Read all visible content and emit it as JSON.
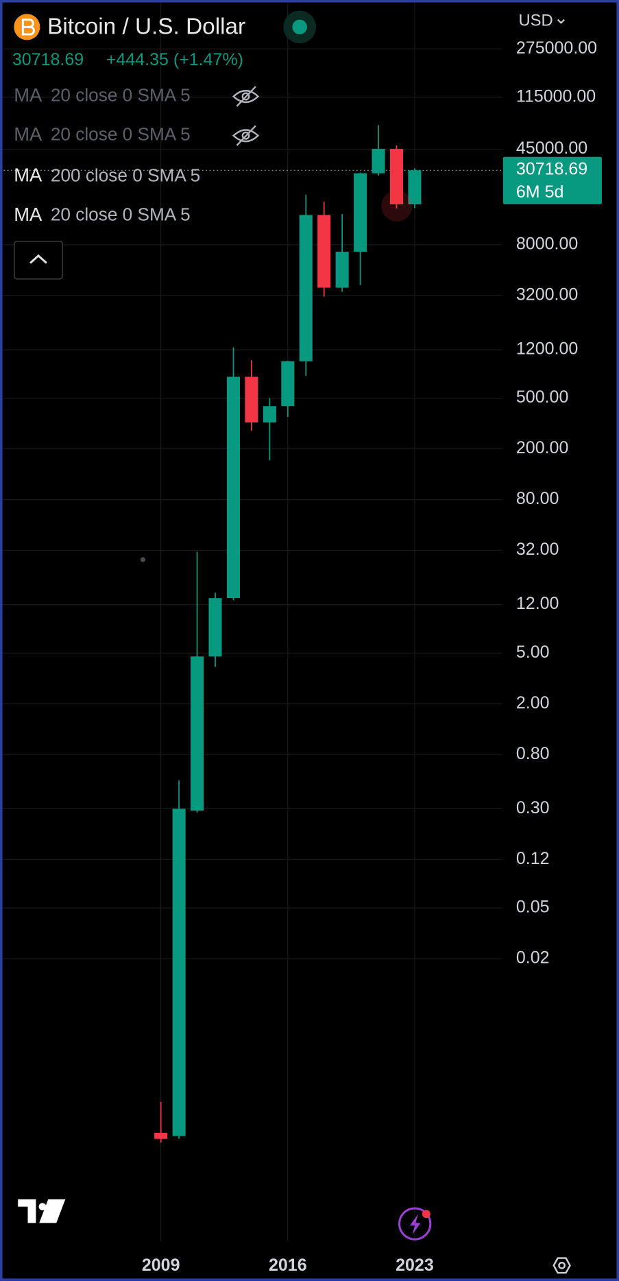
{
  "chart_data": {
    "type": "candlestick",
    "title": "Bitcoin / U.S. Dollar",
    "last_price": 30718.69,
    "change_label": "+444.35 (+1.47%)",
    "currency": "USD",
    "countdown": "6M 5d",
    "indicators": [
      {
        "name": "MA",
        "params": "20 close 0 SMA 5",
        "hidden": true
      },
      {
        "name": "MA",
        "params": "20 close 0 SMA 5",
        "hidden": true
      },
      {
        "name": "MA",
        "params": "200 close 0 SMA 5",
        "hidden": false
      },
      {
        "name": "MA",
        "params": "20 close 0 SMA 5",
        "hidden": false
      }
    ],
    "categories": [
      "2009",
      null,
      null,
      null,
      null,
      null,
      null,
      "2016",
      null,
      null,
      null,
      null,
      null,
      null,
      "2023"
    ],
    "open": [
      0.00086,
      0.00081,
      0.29,
      4.7,
      13.5,
      736,
      322,
      433,
      975,
      13700,
      3680,
      7050,
      29100,
      45300,
      16600
    ],
    "high": [
      0.0015,
      0.5,
      31.2,
      14.9,
      1253,
      995,
      501,
      980,
      19800,
      17400,
      13900,
      29500,
      69500,
      48100,
      31800
    ],
    "low": [
      0.00072,
      0.00077,
      0.28,
      3.9,
      13,
      277,
      163,
      357,
      747,
      3130,
      3420,
      3850,
      27900,
      15400,
      15500
    ],
    "close": [
      0.00077,
      0.3,
      4.7,
      13.5,
      736,
      322,
      433,
      975,
      13700,
      3680,
      7050,
      29100,
      45300,
      16600,
      30718.69
    ],
    "up_color": "#089981",
    "down_color": "#f23645",
    "log_scale": true,
    "grid": true,
    "ylim": [
      0.00012,
      666000
    ],
    "yticks": [
      {
        "value": 275000,
        "label": "275000.00"
      },
      {
        "value": 115000,
        "label": "115000.00"
      },
      {
        "value": 45000,
        "label": "45000.00"
      },
      {
        "value": 8000,
        "label": "8000.00"
      },
      {
        "value": 3200,
        "label": "3200.00"
      },
      {
        "value": 1200,
        "label": "1200.00"
      },
      {
        "value": 500,
        "label": "500.00"
      },
      {
        "value": 200,
        "label": "200.00"
      },
      {
        "value": 80,
        "label": "80.00"
      },
      {
        "value": 32,
        "label": "32.00"
      },
      {
        "value": 12,
        "label": "12.00"
      },
      {
        "value": 5,
        "label": "5.00"
      },
      {
        "value": 2,
        "label": "2.00"
      },
      {
        "value": 0.8,
        "label": "0.80"
      },
      {
        "value": 0.3,
        "label": "0.30"
      },
      {
        "value": 0.12,
        "label": "0.12"
      },
      {
        "value": 0.05,
        "label": "0.05"
      },
      {
        "value": 0.02,
        "label": "0.02"
      }
    ]
  }
}
